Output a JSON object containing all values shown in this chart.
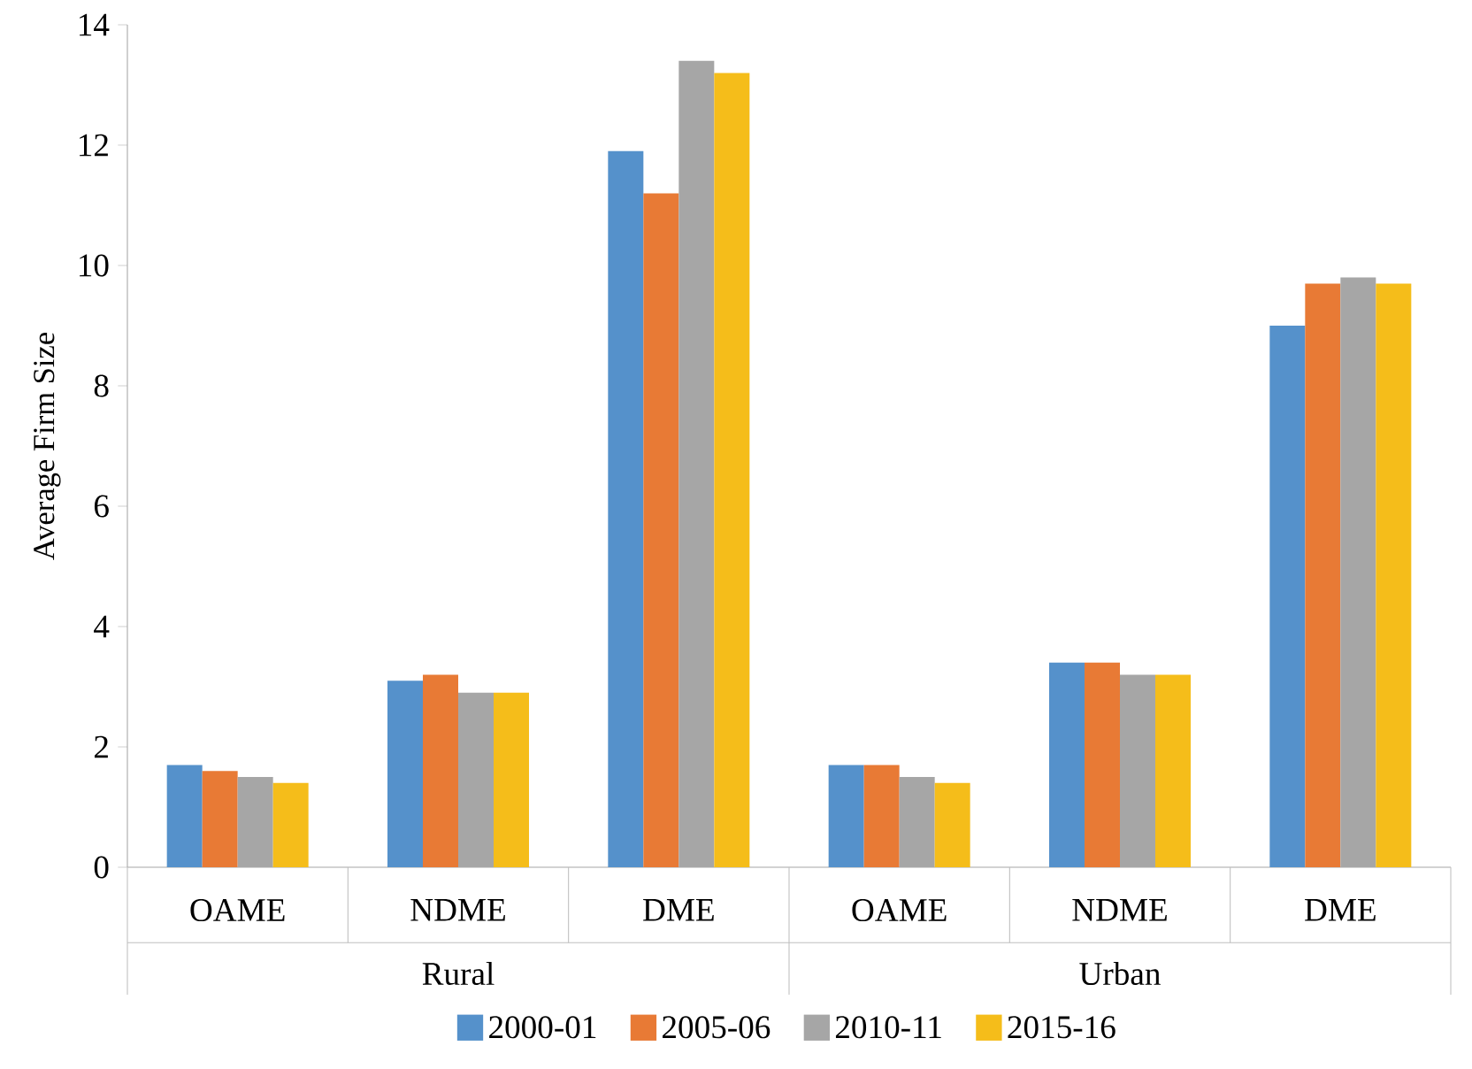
{
  "chart_data": {
    "type": "bar",
    "ylabel": "Average Firm Size",
    "categories": [
      "OAME",
      "NDME",
      "DME",
      "OAME",
      "NDME",
      "DME"
    ],
    "annotations": [
      "Rural",
      "Urban"
    ],
    "series": [
      {
        "name": "2000-01",
        "color": "#5591cb",
        "values": [
          1.7,
          3.1,
          11.9,
          1.7,
          3.4,
          9.0
        ]
      },
      {
        "name": "2005-06",
        "color": "#e87a35",
        "values": [
          1.6,
          3.2,
          11.2,
          1.7,
          3.4,
          9.7
        ]
      },
      {
        "name": "2010-11",
        "color": "#a6a6a6",
        "values": [
          1.5,
          2.9,
          13.4,
          1.5,
          3.2,
          9.8
        ]
      },
      {
        "name": "2015-16",
        "color": "#f5bd1a",
        "values": [
          1.4,
          2.9,
          13.2,
          1.4,
          3.2,
          9.7
        ]
      }
    ],
    "ylim": [
      0,
      14
    ],
    "yticks": [
      0,
      2,
      4,
      6,
      8,
      10,
      12,
      14
    ],
    "legend": "bottom",
    "grid": false
  }
}
